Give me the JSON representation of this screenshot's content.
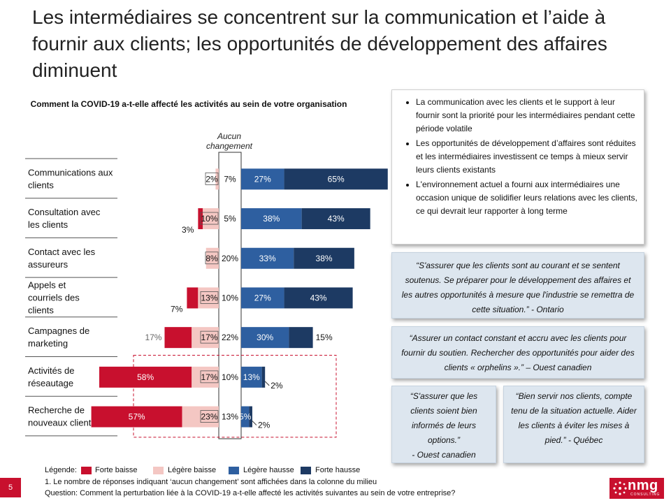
{
  "slide": {
    "title": "Les intermédiaires se concentrent sur la communication et l’aide à fournir aux clients; les opportunités de développement des affaires diminuent",
    "page_number": "5",
    "logo_text": "nmg",
    "logo_sub": "CONSULTING"
  },
  "chart_data": {
    "type": "bar",
    "title": "Comment la COVID-19 a-t-elle affecté les activités au sein de votre organisation",
    "middle_column_label": "Aucun changement",
    "categories": [
      "Communications aux clients",
      "Consultation avec les clients",
      "Contact avec les assureurs",
      "Appels et courriels des clients",
      "Campagnes de marketing",
      "Activités de réseautage",
      "Recherche de nouveaux clients"
    ],
    "series": [
      {
        "name": "Forte baisse",
        "color": "#c8102e",
        "values": [
          0,
          3,
          0,
          7,
          17,
          58,
          57
        ]
      },
      {
        "name": "Légère baisse",
        "color": "#f4c7c3",
        "values": [
          2,
          10,
          8,
          13,
          17,
          17,
          23
        ]
      },
      {
        "name": "Aucun changement",
        "color": "#ffffff",
        "values": [
          7,
          5,
          20,
          10,
          22,
          10,
          13
        ]
      },
      {
        "name": "Légère hausse",
        "color": "#2e5fa0",
        "values": [
          27,
          38,
          33,
          27,
          30,
          13,
          5
        ]
      },
      {
        "name": "Forte hausse",
        "color": "#1d3a63",
        "values": [
          65,
          43,
          38,
          43,
          15,
          2,
          2
        ]
      }
    ],
    "value_labels": {
      "forte_baisse": [
        "",
        "3%",
        "",
        "7%",
        "17%",
        "58%",
        "57%"
      ],
      "legere_baisse": [
        "2%",
        "10%",
        "8%",
        "13%",
        "17%",
        "17%",
        "23%"
      ],
      "aucun": [
        "7%",
        "5%",
        "20%",
        "10%",
        "22%",
        "10%",
        "13%"
      ],
      "legere_hausse": [
        "27%",
        "38%",
        "33%",
        "27%",
        "30%",
        "13%",
        "5%"
      ],
      "forte_hausse": [
        "65%",
        "43%",
        "38%",
        "43%",
        "15%",
        "2%",
        "2%"
      ]
    },
    "highlighted_categories": [
      "Activités de réseautage",
      "Recherche de nouveaux clients"
    ]
  },
  "callouts": {
    "bullets": [
      "La communication avec les clients et le support à leur fournir sont la priorité pour les intermédiaires pendant cette période volatile",
      "Les opportunités de développement d’affaires sont réduites et les intermédiaires investissent ce temps à mieux servir leurs clients existants",
      "L'environnement actuel a fourni aux intermédiaires une occasion unique de solidifier leurs relations avec les clients, ce qui devrait leur rapporter à long terme"
    ],
    "quote1": "“S'assurer que les clients sont au courant et se sentent soutenus. Se préparer pour le développement des affaires et les autres opportunités à mesure que l'industrie se remettra de cette situation.” - Ontario",
    "quote2": "“Assurer un contact constant et accru avec les clients pour fournir du soutien. Rechercher des opportunités pour aider des clients « orphelins ».” – Ouest canadien",
    "quote3": "“S'assurer que les clients soient bien informés de leurs options.”",
    "quote3_source": "- Ouest canadien",
    "quote4": "“Bien servir nos clients, compte tenu de la situation actuelle. Aider les clients à éviter les mises à pied.” - Québec"
  },
  "legend": {
    "title": "Légende:",
    "items": [
      "Forte baisse",
      "Légère baisse",
      "Légère hausse",
      "Forte hausse"
    ],
    "colors": [
      "#c8102e",
      "#f4c7c3",
      "#2e5fa0",
      "#1d3a63"
    ]
  },
  "footnotes": {
    "note": "1. Le nombre de réponses indiquant ‘aucun changement’ sont affichées dans la colonne du milieu",
    "question": "Question: Comment la perturbation liée à la COVID-19 a-t-elle affecté les activités suivantes au sein de votre entreprise?"
  }
}
